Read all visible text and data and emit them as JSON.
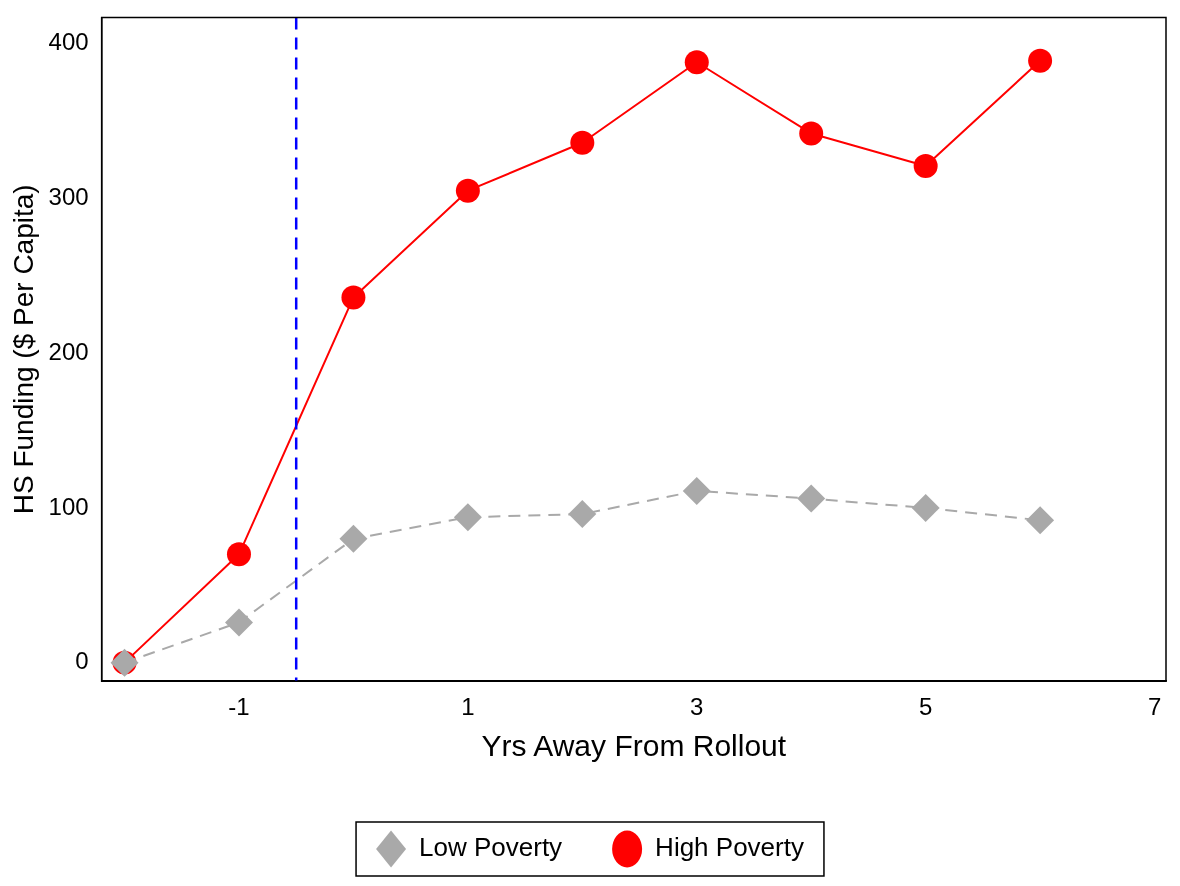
{
  "chart_data": {
    "type": "line",
    "xlabel": "Yrs Away From Rollout",
    "ylabel": "HS Funding ($ Per Capita)",
    "x": [
      -2,
      -1,
      0,
      1,
      2,
      3,
      4,
      5,
      6
    ],
    "xlim": [
      -2.2,
      7.1
    ],
    "xticks": [
      -1,
      1,
      3,
      5,
      7
    ],
    "ylim": [
      -12,
      417
    ],
    "yticks": [
      0,
      100,
      200,
      300,
      400
    ],
    "series": [
      {
        "name": "Low Poverty",
        "color": "#a9a9a9",
        "marker": "diamond",
        "line_style": "dashed",
        "values": [
          0,
          26,
          80,
          94,
          96,
          111,
          106,
          100,
          92
        ]
      },
      {
        "name": "High Poverty",
        "color": "#ff0000",
        "marker": "circle",
        "line_style": "solid",
        "values": [
          0,
          70,
          236,
          305,
          336,
          388,
          342,
          321,
          389
        ]
      }
    ],
    "ref_lines": [
      {
        "axis": "x",
        "value": -0.5,
        "color": "#0000ff",
        "line_style": "dashed"
      }
    ],
    "grid": false,
    "legend": "bottom"
  }
}
